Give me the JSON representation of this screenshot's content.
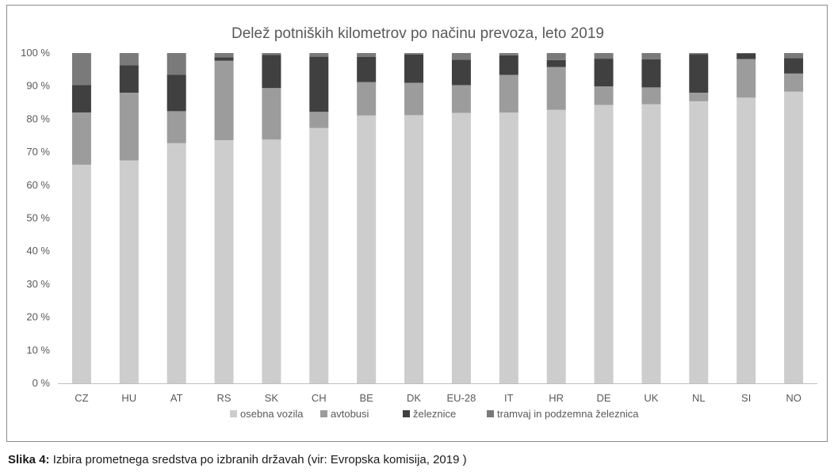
{
  "chart_data": {
    "type": "bar",
    "stacked": true,
    "title": "Delež potniških kilometrov po načinu prevoza, leto 2019",
    "categories": [
      "CZ",
      "HU",
      "AT",
      "RS",
      "SK",
      "CH",
      "BE",
      "DK",
      "EU-28",
      "IT",
      "HR",
      "DE",
      "UK",
      "NL",
      "SI",
      "NO"
    ],
    "series": [
      {
        "name": "osebna vozila",
        "color": "#cdcdcd",
        "values": [
          66.2,
          67.5,
          72.7,
          73.6,
          73.8,
          77.3,
          81.1,
          81.2,
          81.9,
          82.0,
          82.8,
          84.3,
          84.5,
          85.4,
          86.5,
          88.3
        ]
      },
      {
        "name": "avtobusi",
        "color": "#9c9c9c",
        "values": [
          15.8,
          20.5,
          9.7,
          24.1,
          15.6,
          4.9,
          10.1,
          9.8,
          8.4,
          11.4,
          13.0,
          5.6,
          5.1,
          2.6,
          11.7,
          5.5
        ]
      },
      {
        "name": "železnice",
        "color": "#404040",
        "values": [
          8.3,
          8.3,
          11.0,
          1.0,
          10.0,
          16.7,
          7.6,
          8.6,
          7.7,
          5.9,
          2.1,
          8.4,
          8.5,
          11.7,
          1.7,
          4.7
        ]
      },
      {
        "name": "tramvaj in podzemna železnica",
        "color": "#7a7a7a",
        "values": [
          9.7,
          3.7,
          6.6,
          1.3,
          0.6,
          1.1,
          1.2,
          0.4,
          2.0,
          0.7,
          2.1,
          1.7,
          1.9,
          0.3,
          0.1,
          1.5
        ]
      }
    ],
    "ylim": [
      0,
      100
    ],
    "yticks": [
      "0 %",
      "10 %",
      "20 %",
      "30 %",
      "40 %",
      "50 %",
      "60 %",
      "70 %",
      "80 %",
      "90 %",
      "100 %"
    ],
    "grid": false,
    "legend_position": "bottom"
  },
  "caption": {
    "label": "Slika 4:",
    "text": "Izbira prometnega sredstva po izbranih državah (vir: Evropska komisija, 2019 )"
  }
}
